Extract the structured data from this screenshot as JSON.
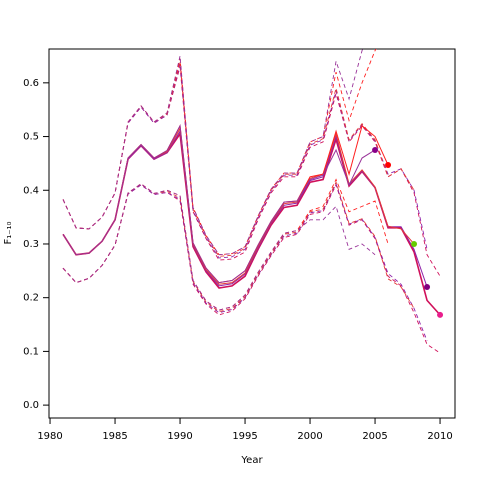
{
  "chart_data": {
    "type": "line",
    "xlabel": "Year",
    "ylabel": "F₁₋₁₀",
    "xlim": [
      1979.92,
      2011.15
    ],
    "ylim": [
      -0.024,
      0.663
    ],
    "xticks": [
      1980,
      1985,
      1990,
      1995,
      2000,
      2005,
      2010
    ],
    "yticks": [
      {
        "value": 0,
        "label": "0.0"
      },
      0.1,
      0.2,
      0.3,
      0.4,
      0.5,
      0.6
    ],
    "x": [
      1981,
      1982,
      1983,
      1984,
      1985,
      1986,
      1987,
      1988,
      1989,
      1990,
      1991,
      1992,
      1993,
      1994,
      1995,
      1996,
      1997,
      1998,
      1999,
      2000,
      2001,
      2002,
      2003,
      2004,
      2005,
      2006,
      2007,
      2008,
      2009,
      2010
    ],
    "series": [
      {
        "color": "#d0105a",
        "marker_color": "#e91e8c",
        "values": [
          0.318,
          0.28,
          0.283,
          0.305,
          0.345,
          0.458,
          0.483,
          0.458,
          0.47,
          0.505,
          0.295,
          0.248,
          0.218,
          0.222,
          0.24,
          0.29,
          0.335,
          0.368,
          0.372,
          0.415,
          0.42,
          0.495,
          0.408,
          0.435,
          0.405,
          0.33,
          0.33,
          0.285,
          0.195,
          0.168
        ],
        "upper": [
          0.383,
          0.33,
          0.328,
          0.35,
          0.395,
          0.525,
          0.555,
          0.525,
          0.54,
          0.63,
          0.36,
          0.31,
          0.27,
          0.272,
          0.285,
          0.345,
          0.395,
          0.425,
          0.425,
          0.48,
          0.49,
          0.58,
          0.49,
          0.52,
          0.49,
          0.425,
          0.44,
          0.395,
          0.28,
          0.24
        ],
        "lower": [
          0.255,
          0.228,
          0.236,
          0.26,
          0.298,
          0.393,
          0.41,
          0.392,
          0.396,
          0.38,
          0.225,
          0.188,
          0.168,
          0.175,
          0.198,
          0.24,
          0.278,
          0.312,
          0.318,
          0.355,
          0.36,
          0.41,
          0.335,
          0.345,
          0.31,
          0.24,
          0.222,
          0.172,
          0.113,
          0.097
        ]
      },
      {
        "color": "#8e24aa",
        "marker_color": "#800080",
        "values": [
          0.318,
          0.28,
          0.283,
          0.305,
          0.345,
          0.458,
          0.483,
          0.458,
          0.47,
          0.51,
          0.298,
          0.25,
          0.222,
          0.226,
          0.244,
          0.292,
          0.338,
          0.372,
          0.376,
          0.418,
          0.425,
          0.5,
          0.41,
          0.436,
          0.405,
          0.332,
          0.332,
          0.29,
          0.22,
          null
        ],
        "upper": [
          0.383,
          0.33,
          0.328,
          0.35,
          0.395,
          0.525,
          0.555,
          0.525,
          0.54,
          0.635,
          0.362,
          0.312,
          0.274,
          0.276,
          0.29,
          0.348,
          0.398,
          0.428,
          0.428,
          0.484,
          0.494,
          0.585,
          0.492,
          0.522,
          0.492,
          0.43,
          0.44,
          0.4,
          0.29,
          null
        ],
        "lower": [
          0.255,
          0.228,
          0.236,
          0.26,
          0.298,
          0.393,
          0.41,
          0.392,
          0.396,
          0.383,
          0.228,
          0.19,
          0.172,
          0.178,
          0.2,
          0.242,
          0.28,
          0.315,
          0.32,
          0.358,
          0.362,
          0.412,
          0.337,
          0.346,
          0.312,
          0.245,
          0.225,
          0.18,
          0.12,
          null
        ]
      },
      {
        "color": "#e53935",
        "marker_color": "#66cc00",
        "values": [
          0.318,
          0.28,
          0.283,
          0.305,
          0.345,
          0.46,
          0.485,
          0.46,
          0.472,
          0.515,
          0.3,
          0.252,
          0.225,
          0.228,
          0.246,
          0.295,
          0.34,
          0.375,
          0.378,
          0.422,
          0.43,
          0.505,
          0.412,
          0.438,
          0.406,
          0.333,
          0.328,
          0.3,
          null,
          null
        ],
        "upper": [
          0.383,
          0.33,
          0.328,
          0.35,
          0.395,
          0.527,
          0.557,
          0.527,
          0.542,
          0.64,
          0.365,
          0.314,
          0.277,
          0.279,
          0.292,
          0.35,
          0.4,
          0.43,
          0.43,
          0.486,
          0.496,
          0.59,
          0.494,
          0.524,
          0.494,
          0.425,
          0.44,
          0.4,
          null,
          null
        ],
        "lower": [
          0.255,
          0.228,
          0.236,
          0.26,
          0.298,
          0.395,
          0.412,
          0.394,
          0.398,
          0.386,
          0.23,
          0.192,
          0.174,
          0.18,
          0.202,
          0.244,
          0.282,
          0.318,
          0.322,
          0.36,
          0.365,
          0.415,
          0.338,
          0.347,
          0.314,
          0.235,
          0.22,
          0.18,
          null,
          null
        ]
      },
      {
        "color": "#ff2020",
        "marker_color": "#ff0000",
        "values": [
          0.318,
          0.28,
          0.283,
          0.305,
          0.345,
          0.46,
          0.485,
          0.46,
          0.474,
          0.52,
          0.302,
          0.255,
          0.228,
          0.232,
          0.25,
          0.298,
          0.342,
          0.378,
          0.38,
          0.425,
          0.43,
          0.51,
          0.43,
          0.52,
          0.5,
          0.447,
          null,
          null,
          null,
          null
        ],
        "upper": [
          0.383,
          0.33,
          0.328,
          0.35,
          0.395,
          0.527,
          0.557,
          0.527,
          0.544,
          0.645,
          0.368,
          0.316,
          0.28,
          0.282,
          0.295,
          0.352,
          0.402,
          0.432,
          0.432,
          0.49,
          0.5,
          0.62,
          0.53,
          0.6,
          0.66,
          0.7,
          null,
          null,
          null,
          null
        ],
        "lower": [
          0.255,
          0.228,
          0.236,
          0.26,
          0.298,
          0.395,
          0.412,
          0.394,
          0.4,
          0.39,
          0.232,
          0.194,
          0.177,
          0.183,
          0.205,
          0.247,
          0.285,
          0.32,
          0.325,
          0.362,
          0.37,
          0.42,
          0.36,
          0.37,
          0.38,
          0.3,
          null,
          null,
          null,
          null
        ]
      },
      {
        "color": "#993399",
        "marker_color": "#880088",
        "values": [
          0.318,
          0.28,
          0.283,
          0.305,
          0.345,
          0.46,
          0.485,
          0.46,
          0.474,
          0.52,
          0.302,
          0.255,
          0.228,
          0.232,
          0.25,
          0.298,
          0.342,
          0.378,
          0.38,
          0.42,
          0.428,
          0.475,
          0.41,
          0.46,
          0.475,
          null,
          null,
          null,
          null,
          null
        ],
        "upper": [
          0.383,
          0.33,
          0.328,
          0.35,
          0.395,
          0.527,
          0.557,
          0.527,
          0.544,
          0.65,
          0.368,
          0.316,
          0.28,
          0.282,
          0.295,
          0.352,
          0.402,
          0.432,
          0.432,
          0.49,
          0.5,
          0.64,
          0.57,
          0.66,
          0.72,
          null,
          null,
          null,
          null,
          null
        ],
        "lower": [
          0.255,
          0.228,
          0.236,
          0.26,
          0.298,
          0.395,
          0.412,
          0.394,
          0.4,
          0.39,
          0.232,
          0.194,
          0.177,
          0.183,
          0.205,
          0.247,
          0.285,
          0.32,
          0.325,
          0.345,
          0.345,
          0.37,
          0.29,
          0.3,
          0.28,
          null,
          null,
          null,
          null,
          null
        ]
      }
    ]
  }
}
